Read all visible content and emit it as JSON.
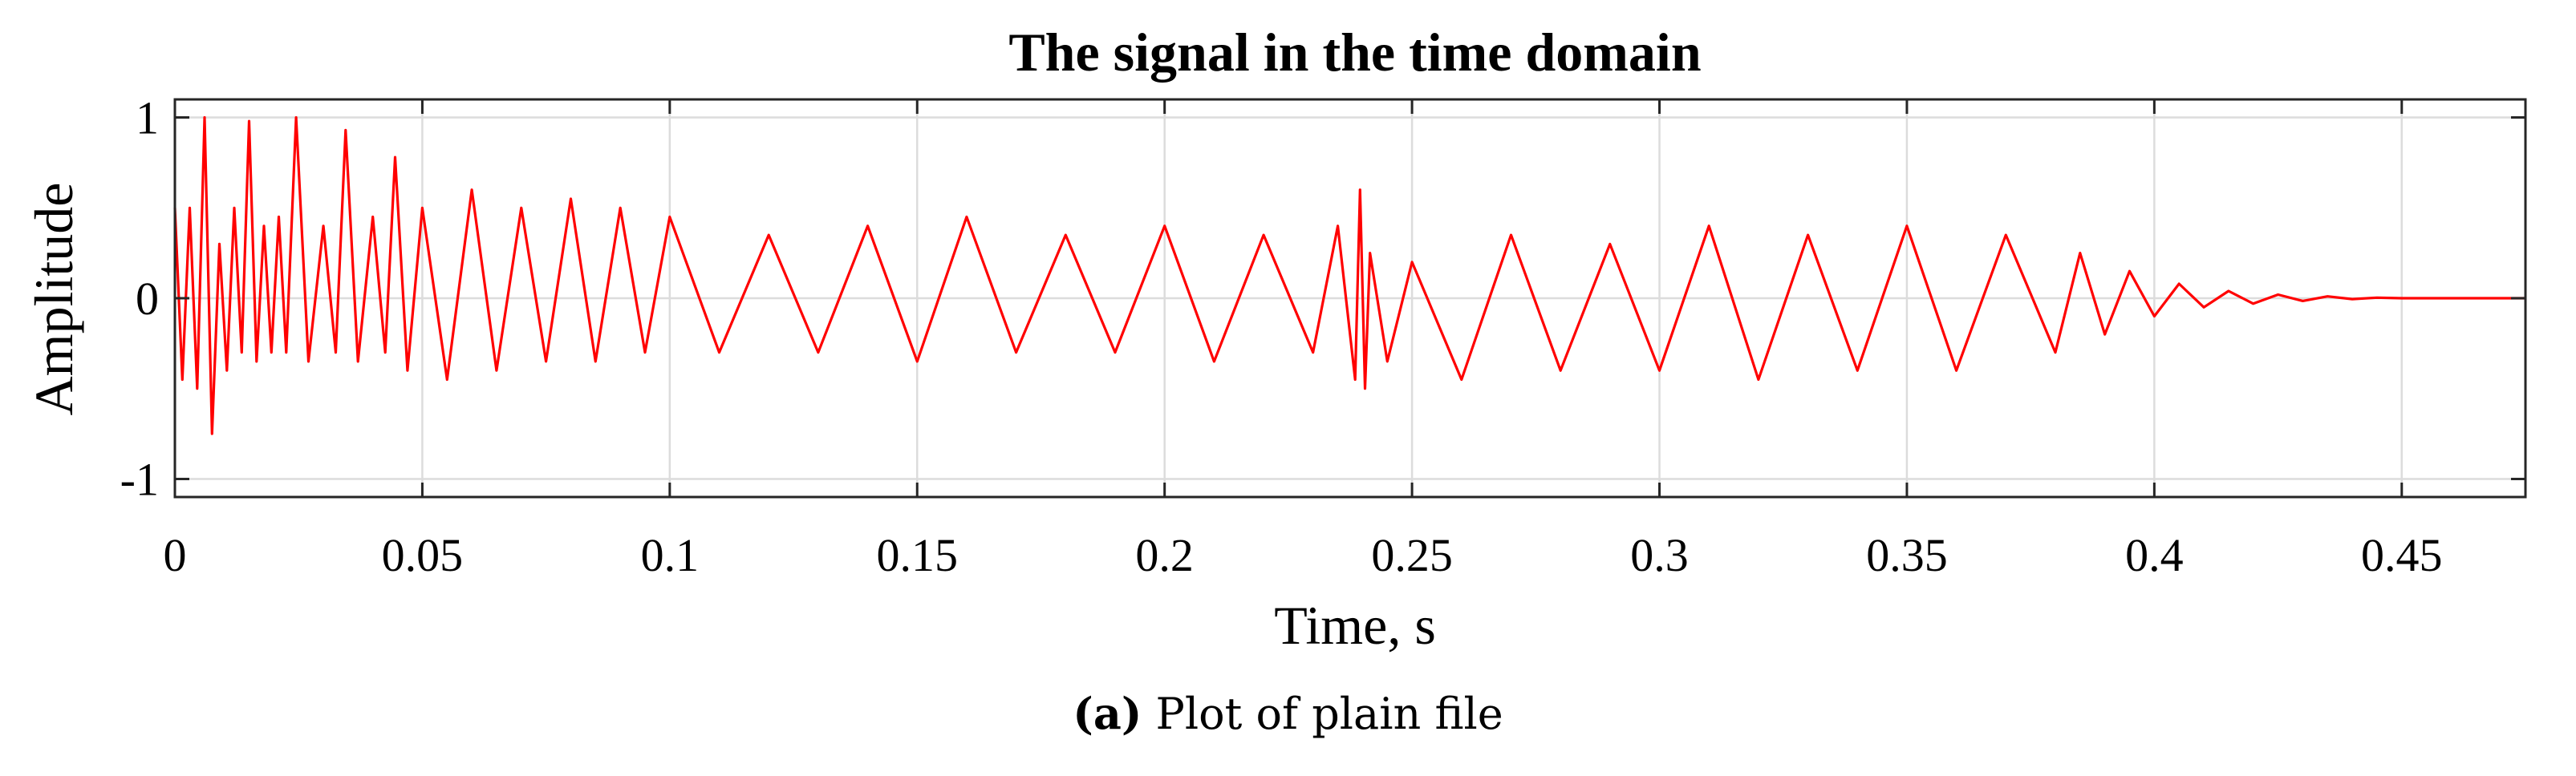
{
  "chart_data": {
    "type": "line",
    "title": "The signal in the time domain",
    "xlabel": "Time, s",
    "ylabel": "Amplitude",
    "xlim": [
      0,
      0.475
    ],
    "ylim": [
      -1.1,
      1.1
    ],
    "xticks": [
      0,
      0.05,
      0.1,
      0.15,
      0.2,
      0.25,
      0.3,
      0.35,
      0.4,
      0.45
    ],
    "xtick_labels": [
      "0",
      "0.05",
      "0.1",
      "0.15",
      "0.2",
      "0.25",
      "0.3",
      "0.35",
      "0.4",
      "0.45"
    ],
    "yticks": [
      1,
      0,
      -1
    ],
    "ytick_labels": [
      "1",
      "0",
      "-1"
    ],
    "grid": true,
    "line_color": "#ff0000",
    "series": [
      {
        "x": [
          0,
          0.0015,
          0.003,
          0.0045,
          0.006,
          0.0075,
          0.009,
          0.0105,
          0.012,
          0.0135,
          0.015,
          0.0165,
          0.018,
          0.0195,
          0.021,
          0.0225,
          0.0245,
          0.027,
          0.03,
          0.0325,
          0.0345,
          0.037,
          0.04,
          0.0425,
          0.0445,
          0.047,
          0.05,
          0.055,
          0.06,
          0.065,
          0.07,
          0.075,
          0.08,
          0.085,
          0.09,
          0.095,
          0.1,
          0.11,
          0.12,
          0.13,
          0.14,
          0.15,
          0.16,
          0.17,
          0.18,
          0.19,
          0.2,
          0.21,
          0.22,
          0.23,
          0.235,
          0.2385,
          0.2395,
          0.2405,
          0.2415,
          0.245,
          0.25,
          0.26,
          0.27,
          0.28,
          0.29,
          0.3,
          0.31,
          0.32,
          0.33,
          0.34,
          0.35,
          0.36,
          0.37,
          0.38,
          0.385,
          0.39,
          0.395,
          0.4,
          0.405,
          0.41,
          0.415,
          0.42,
          0.425,
          0.43,
          0.435,
          0.44,
          0.445,
          0.45,
          0.46,
          0.475
        ],
        "y": [
          0.5,
          -0.45,
          0.5,
          -0.5,
          1.0,
          -0.75,
          0.3,
          -0.4,
          0.5,
          -0.3,
          0.98,
          -0.35,
          0.4,
          -0.3,
          0.45,
          -0.3,
          1.0,
          -0.35,
          0.4,
          -0.3,
          0.93,
          -0.35,
          0.45,
          -0.3,
          0.78,
          -0.4,
          0.5,
          -0.45,
          0.6,
          -0.4,
          0.5,
          -0.35,
          0.55,
          -0.35,
          0.5,
          -0.3,
          0.45,
          -0.3,
          0.35,
          -0.3,
          0.4,
          -0.35,
          0.45,
          -0.3,
          0.35,
          -0.3,
          0.4,
          -0.35,
          0.35,
          -0.3,
          0.4,
          -0.45,
          0.6,
          -0.5,
          0.25,
          -0.35,
          0.2,
          -0.45,
          0.35,
          -0.4,
          0.3,
          -0.4,
          0.4,
          -0.45,
          0.35,
          -0.4,
          0.4,
          -0.4,
          0.35,
          -0.3,
          0.25,
          -0.2,
          0.15,
          -0.1,
          0.08,
          -0.05,
          0.04,
          -0.03,
          0.02,
          -0.015,
          0.01,
          -0.005,
          0.003,
          0,
          0,
          0
        ]
      }
    ]
  },
  "caption": {
    "label": "(a)",
    "text": " Plot of plain file"
  }
}
